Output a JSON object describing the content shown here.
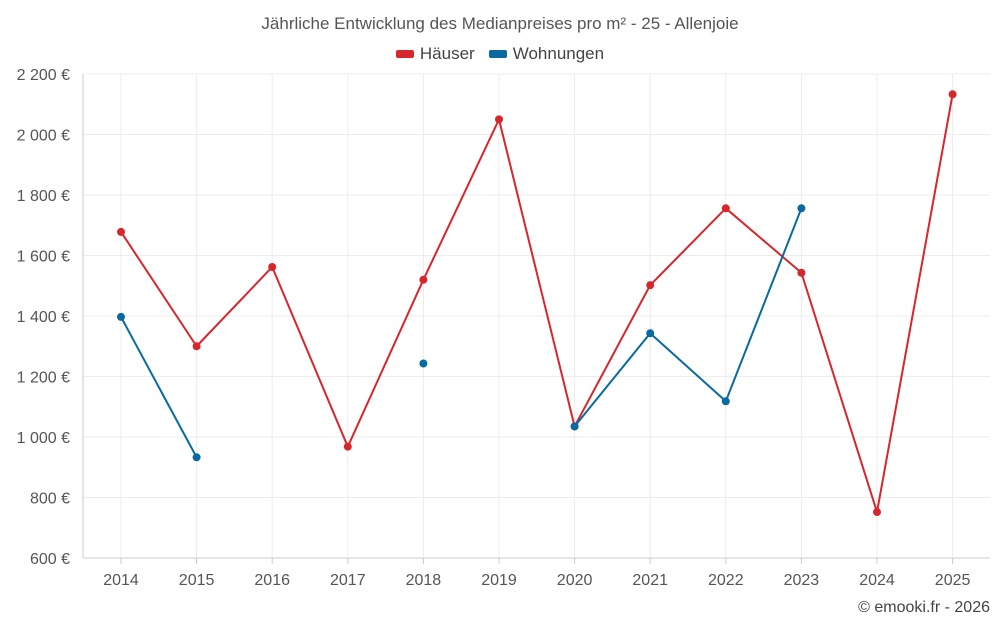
{
  "chart_data": {
    "type": "line",
    "title": "Jährliche Entwicklung des Medianpreises pro m² - 25 - Allenjoie",
    "xlabel": "",
    "ylabel": "",
    "categories": [
      "2014",
      "2015",
      "2016",
      "2017",
      "2018",
      "2019",
      "2020",
      "2021",
      "2022",
      "2023",
      "2024",
      "2025"
    ],
    "ylim": [
      600,
      2200
    ],
    "yticks": [
      600,
      800,
      1000,
      1200,
      1400,
      1600,
      1800,
      2000,
      2200
    ],
    "ytick_labels": [
      "600 €",
      "800 €",
      "1 000 €",
      "1 200 €",
      "1 400 €",
      "1 600 €",
      "1 800 €",
      "2 000 €",
      "2 200 €"
    ],
    "grid": true,
    "legend_position": "top-center",
    "series": [
      {
        "name": "Häuser",
        "color": "#d7262c",
        "values": [
          1678,
          1300,
          1562,
          968,
          1520,
          2050,
          1035,
          1502,
          1756,
          1543,
          752,
          2133
        ]
      },
      {
        "name": "Wohnungen",
        "color": "#086aa1",
        "values": [
          1397,
          933,
          null,
          null,
          1243,
          null,
          1035,
          1343,
          1118,
          1756,
          null,
          null
        ]
      }
    ]
  },
  "credit": "© emooki.fr - 2026"
}
